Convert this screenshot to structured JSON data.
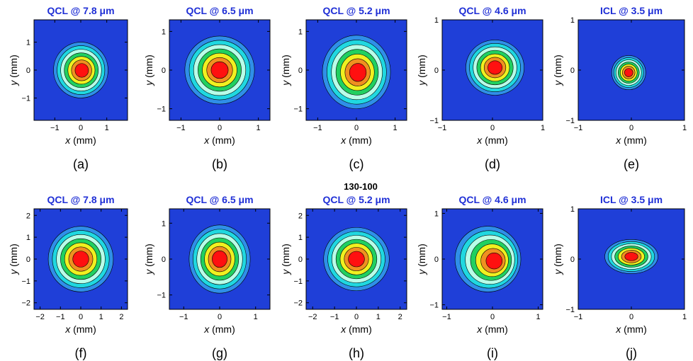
{
  "figure": {
    "center_label": "130-100",
    "colors": {
      "title": "#1f2fd6",
      "background": "#1f3fd8",
      "levels": [
        "#1f3fd8",
        "#2f8fe8",
        "#20d8e0",
        "#b8ffe8",
        "#20d060",
        "#f0f020",
        "#f09020",
        "#ff1010"
      ]
    }
  },
  "chart_data": [
    {
      "type": "heatmap",
      "panel_label": "(a)",
      "title": "QCL @ 7.8 μm",
      "xlabel_var": "x",
      "xlabel_unit": " (mm)",
      "ylabel_var": "y",
      "ylabel_unit": " (mm)",
      "xlim": [
        -1.8,
        1.8
      ],
      "ylim": [
        -1.8,
        1.8
      ],
      "xticks": [
        -1,
        0,
        1
      ],
      "yticks": [
        -1,
        0,
        1
      ],
      "beam": {
        "cx": 0.0,
        "cy": 0.0,
        "rx": 1.05,
        "ry": 1.0,
        "skew": 0.05
      }
    },
    {
      "type": "heatmap",
      "panel_label": "(b)",
      "title": "QCL @ 6.5 μm",
      "xlabel_var": "x",
      "xlabel_unit": " (mm)",
      "ylabel_var": "y",
      "ylabel_unit": " (mm)",
      "xlim": [
        -1.3,
        1.3
      ],
      "ylim": [
        -1.3,
        1.3
      ],
      "xticks": [
        -1,
        0,
        1
      ],
      "yticks": [
        -1,
        0,
        1
      ],
      "beam": {
        "cx": 0.0,
        "cy": 0.0,
        "rx": 0.9,
        "ry": 0.88,
        "skew": 0.0
      }
    },
    {
      "type": "heatmap",
      "panel_label": "(c)",
      "title": "QCL @ 5.2 μm",
      "xlabel_var": "x",
      "xlabel_unit": " (mm)",
      "ylabel_var": "y",
      "ylabel_unit": " (mm)",
      "xlim": [
        -1.3,
        1.3
      ],
      "ylim": [
        -1.3,
        1.3
      ],
      "xticks": [
        -1,
        0,
        1
      ],
      "yticks": [
        -1,
        0,
        1
      ],
      "beam": {
        "cx": 0.0,
        "cy": -0.05,
        "rx": 0.88,
        "ry": 0.95,
        "skew": 0.05
      }
    },
    {
      "type": "heatmap",
      "panel_label": "(d)",
      "title": "QCL @ 4.6 μm",
      "xlabel_var": "x",
      "xlabel_unit": " (mm)",
      "ylabel_var": "y",
      "ylabel_unit": " (mm)",
      "xlim": [
        -1,
        1
      ],
      "ylim": [
        -1,
        1
      ],
      "xticks": [
        -1,
        0,
        1
      ],
      "yticks": [
        -1,
        0,
        1
      ],
      "beam": {
        "cx": 0.05,
        "cy": 0.05,
        "rx": 0.58,
        "ry": 0.55,
        "skew": 0.0
      }
    },
    {
      "type": "heatmap",
      "panel_label": "(e)",
      "title": "ICL @ 3.5 μm",
      "xlabel_var": "x",
      "xlabel_unit": " (mm)",
      "ylabel_var": "y",
      "ylabel_unit": " (mm)",
      "xlim": [
        -1,
        1
      ],
      "ylim": [
        -1,
        1
      ],
      "xticks": [
        -1,
        0,
        1
      ],
      "yticks": [
        -1,
        0,
        1
      ],
      "beam": {
        "cx": -0.05,
        "cy": -0.05,
        "rx": 0.32,
        "ry": 0.34,
        "skew": 0.0
      }
    },
    {
      "type": "heatmap",
      "panel_label": "(f)",
      "title": "QCL @ 7.8 μm",
      "xlabel_var": "x",
      "xlabel_unit": " (mm)",
      "ylabel_var": "y",
      "ylabel_unit": " (mm)",
      "xlim": [
        -2.3,
        2.3
      ],
      "ylim": [
        -2.3,
        2.3
      ],
      "xticks": [
        -2,
        -1,
        0,
        1,
        2
      ],
      "yticks": [
        -2,
        -1,
        0,
        1,
        2
      ],
      "beam": {
        "cx": 0.0,
        "cy": 0.0,
        "rx": 1.6,
        "ry": 1.5,
        "skew": 0.0
      }
    },
    {
      "type": "heatmap",
      "panel_label": "(g)",
      "title": "QCL @ 6.5 μm",
      "xlabel_var": "x",
      "xlabel_unit": " (mm)",
      "ylabel_var": "y",
      "ylabel_unit": " (mm)",
      "xlim": [
        -1.4,
        1.4
      ],
      "ylim": [
        -1.4,
        1.4
      ],
      "xticks": [
        -1,
        0,
        1
      ],
      "yticks": [
        -1,
        0,
        1
      ],
      "beam": {
        "cx": 0.0,
        "cy": 0.0,
        "rx": 0.85,
        "ry": 0.95,
        "skew": 0.0
      }
    },
    {
      "type": "heatmap",
      "panel_label": "(h)",
      "title": "QCL @ 5.2 μm",
      "xlabel_var": "x",
      "xlabel_unit": " (mm)",
      "ylabel_var": "y",
      "ylabel_unit": " (mm)",
      "xlim": [
        -2.3,
        2.3
      ],
      "ylim": [
        -2.3,
        2.3
      ],
      "xticks": [
        -2,
        -1,
        0,
        1,
        2
      ],
      "yticks": [
        -2,
        -1,
        0,
        1,
        2
      ],
      "beam": {
        "cx": 0.0,
        "cy": 0.0,
        "rx": 1.5,
        "ry": 1.45,
        "skew": 0.0
      }
    },
    {
      "type": "heatmap",
      "panel_label": "(i)",
      "title": "QCL @ 4.6 μm",
      "xlabel_var": "x",
      "xlabel_unit": " (mm)",
      "ylabel_var": "y",
      "ylabel_unit": " (mm)",
      "xlim": [
        -1.1,
        1.1
      ],
      "ylim": [
        -1.1,
        1.1
      ],
      "xticks": [
        -1,
        0,
        1
      ],
      "yticks": [
        -1,
        0,
        1
      ],
      "beam": {
        "cx": -0.1,
        "cy": 0.0,
        "rx": 0.72,
        "ry": 0.72,
        "skew": 0.18
      }
    },
    {
      "type": "heatmap",
      "panel_label": "(j)",
      "title": "ICL @ 3.5 μm",
      "xlabel_var": "x",
      "xlabel_unit": " (mm)",
      "ylabel_var": "y",
      "ylabel_unit": " (mm)",
      "xlim": [
        -1,
        1
      ],
      "ylim": [
        -1,
        1
      ],
      "xticks": [
        -1,
        0,
        1
      ],
      "yticks": [
        -1,
        0,
        1
      ],
      "beam": {
        "cx": 0.0,
        "cy": 0.05,
        "rx": 0.5,
        "ry": 0.34,
        "skew": 0.0
      }
    }
  ]
}
